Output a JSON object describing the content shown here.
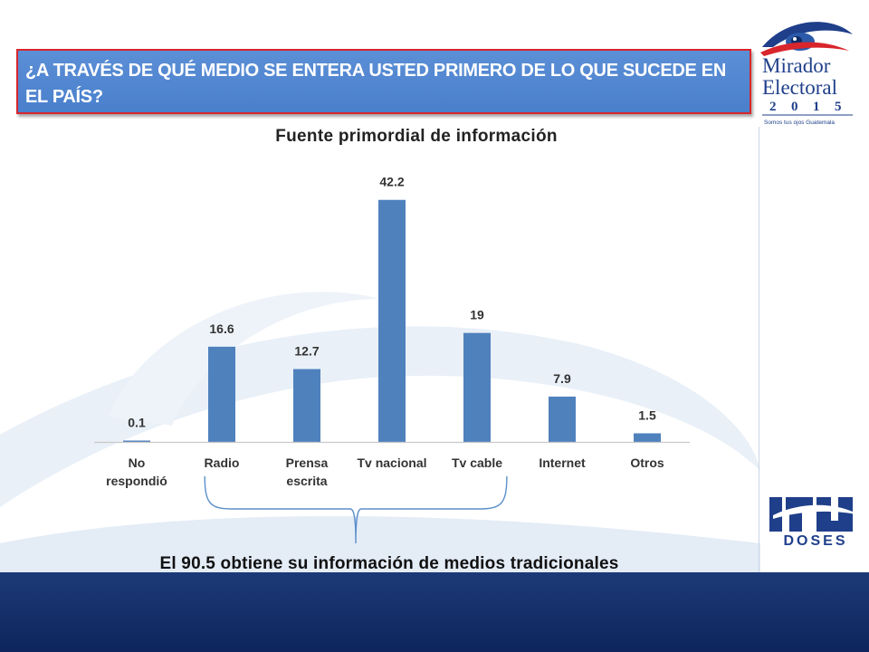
{
  "header": {
    "question": "¿A TRAVÉS DE QUÉ MEDIO SE ENTERA USTED PRIMERO DE LO QUE SUCEDE EN EL PAÍS?"
  },
  "footer": {
    "conclusion": "El 90.5 obtiene su información de medios tradicionales"
  },
  "logos": {
    "mirador": {
      "line1": "Mirador",
      "line2": "Electoral",
      "digits": [
        "2",
        "0",
        "1",
        "5"
      ],
      "tagline": "Somos tus ojos Guatemala"
    },
    "doses": {
      "text": "DOSES",
      "mark": "eye-swoosh"
    }
  },
  "colors": {
    "bar": "#4f81bd",
    "header": "#4f86d1",
    "header_border": "#d8262c",
    "band": "#142f6a"
  },
  "chart_data": {
    "type": "bar",
    "title": "Fuente primordial de información",
    "categories": [
      "No respondió",
      "Radio",
      "Prensa escrita",
      "Tv nacional",
      "Tv cable",
      "Internet",
      "Otros"
    ],
    "category_lines": [
      [
        "No",
        "respondió"
      ],
      [
        "Radio"
      ],
      [
        "Prensa",
        "escrita"
      ],
      [
        "Tv nacional"
      ],
      [
        "Tv cable"
      ],
      [
        "Internet"
      ],
      [
        "Otros"
      ]
    ],
    "values": [
      0.1,
      16.6,
      12.7,
      42.2,
      19,
      7.9,
      1.5
    ],
    "value_labels": [
      "0.1",
      "16.6",
      "12.7",
      "42.2",
      "19",
      "7.9",
      "1.5"
    ],
    "ylim": [
      0,
      45
    ],
    "grid": false,
    "legend": "none",
    "bracket_span": [
      "Radio",
      "Tv cable"
    ]
  }
}
